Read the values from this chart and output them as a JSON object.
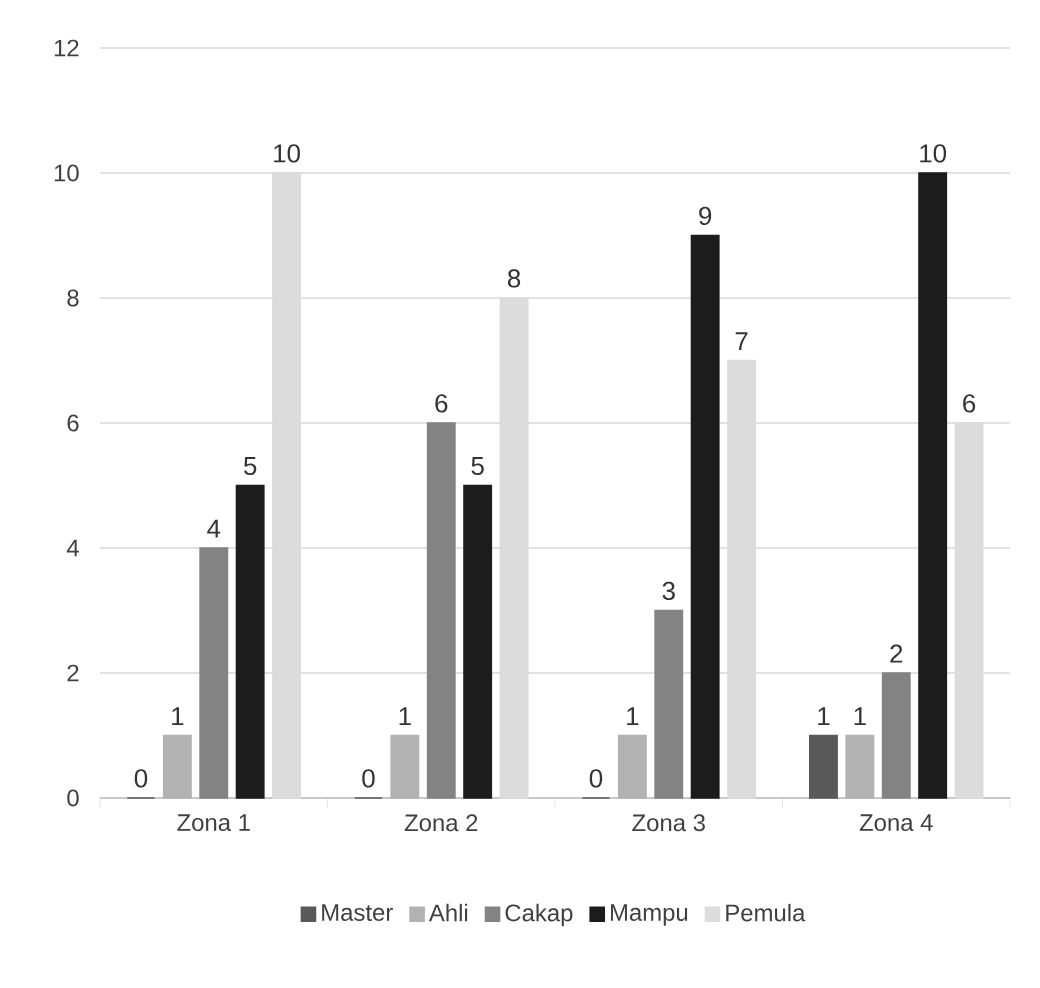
{
  "chart_data": {
    "type": "bar",
    "categories": [
      "Zona 1",
      "Zona 2",
      "Zona 3",
      "Zona 4"
    ],
    "series": [
      {
        "name": "Master",
        "color": "#595959",
        "values": [
          0,
          0,
          0,
          1
        ]
      },
      {
        "name": "Ahli",
        "color": "#b2b2b2",
        "values": [
          1,
          1,
          1,
          1
        ]
      },
      {
        "name": "Cakap",
        "color": "#838383",
        "values": [
          4,
          6,
          3,
          2
        ]
      },
      {
        "name": "Mampu",
        "color": "#1c1c1c",
        "values": [
          5,
          5,
          9,
          10
        ]
      },
      {
        "name": "Pemula",
        "color": "#dcdcdc",
        "values": [
          10,
          8,
          7,
          6
        ]
      }
    ],
    "ylim": [
      0,
      12
    ],
    "yticks": [
      0,
      2,
      4,
      6,
      8,
      10,
      12
    ],
    "grid": "y",
    "legend": "bottom",
    "data_labels": true
  }
}
